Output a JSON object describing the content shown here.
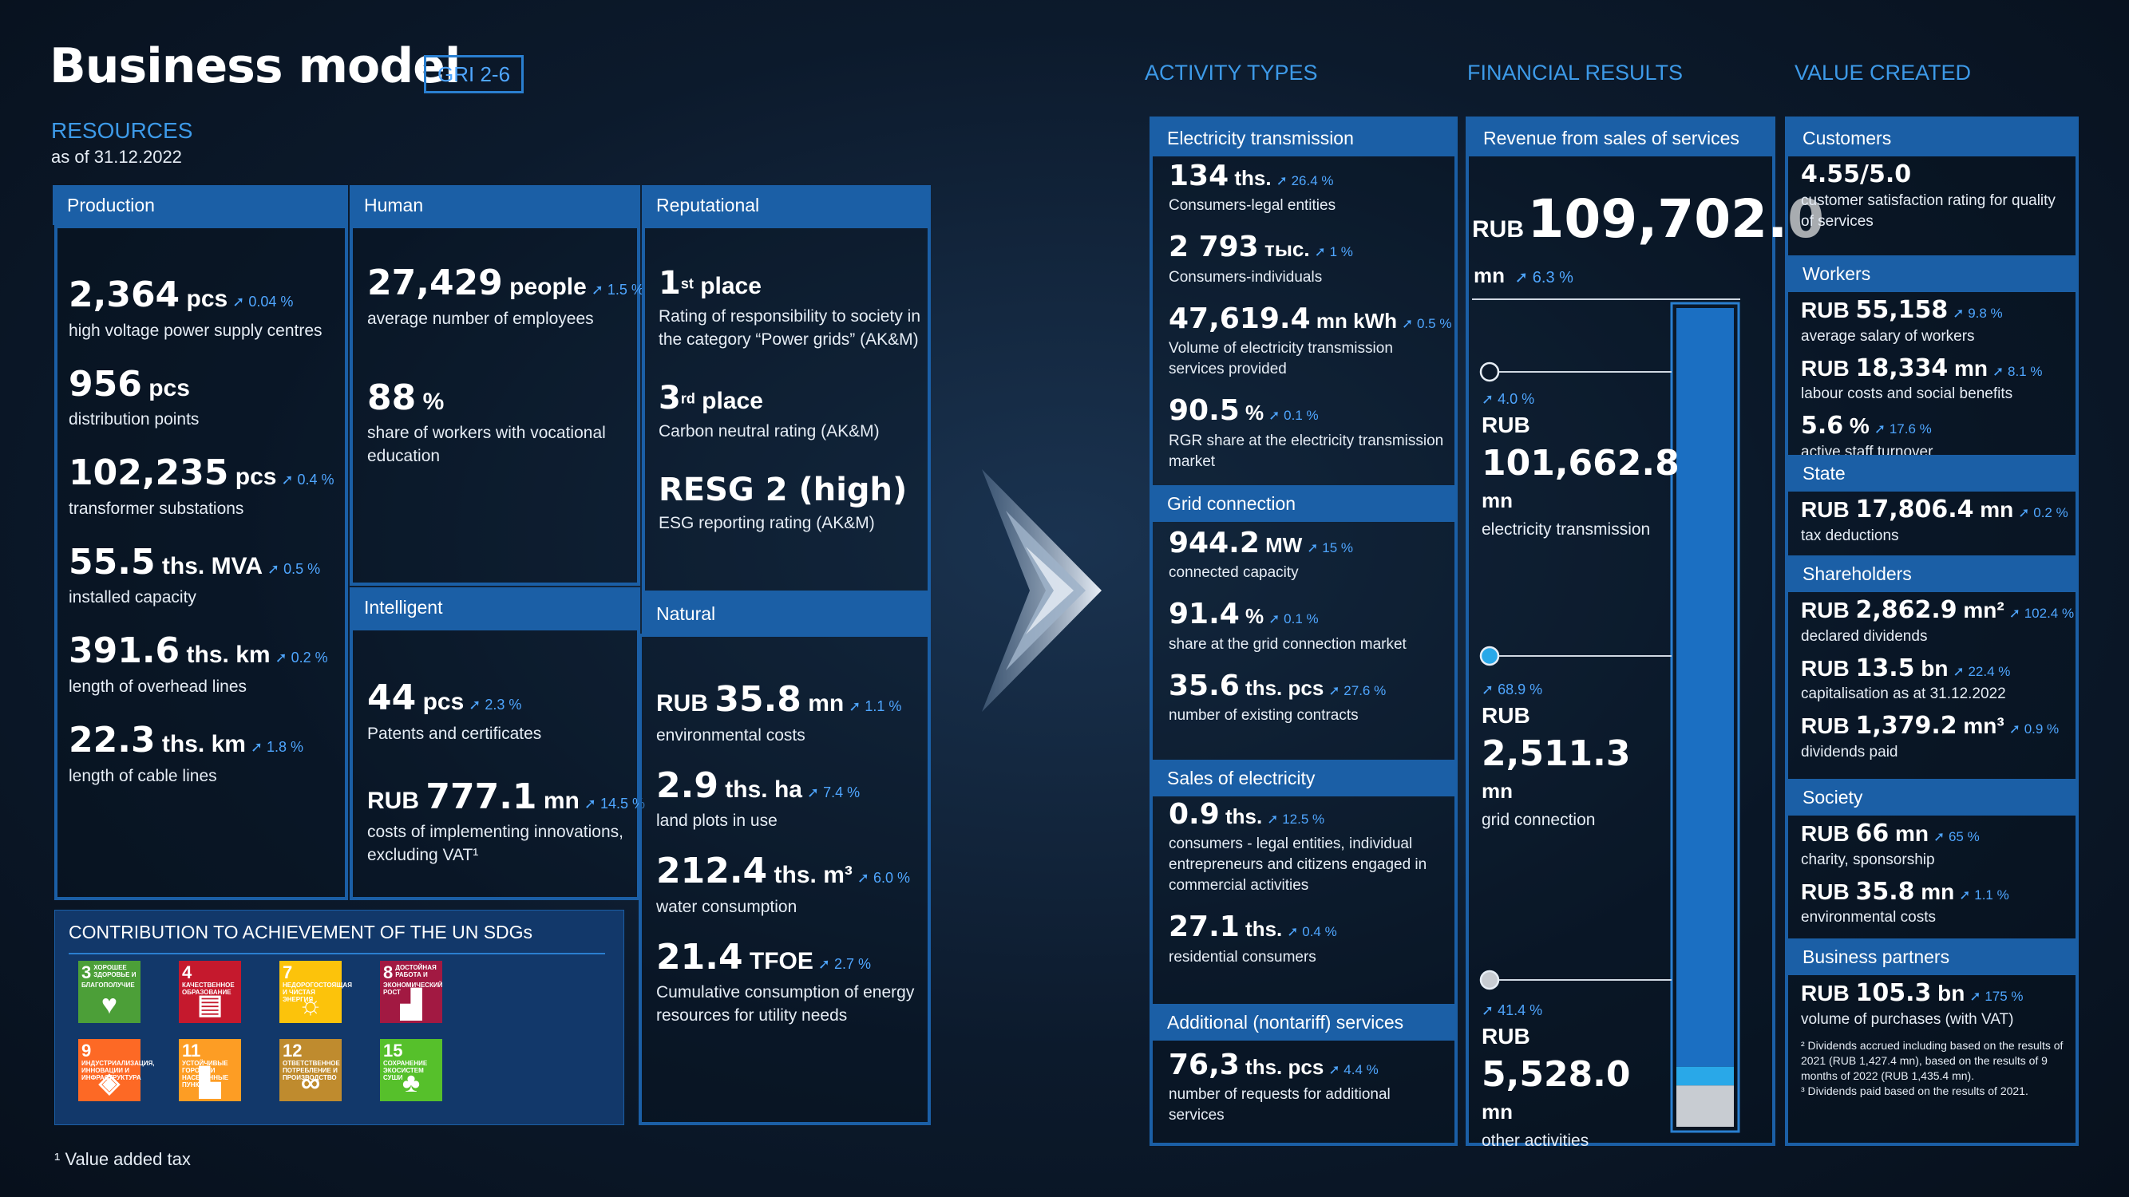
{
  "title": "Business model",
  "gri": "GRI 2-6",
  "resources_label": "RESOURCES",
  "as_of": "as of 31.12.2022",
  "production": {
    "header": "Production",
    "items": [
      {
        "value": "2,364",
        "unit": "pcs",
        "change": "0.04 %",
        "desc": "high voltage power supply centres"
      },
      {
        "value": "956",
        "unit": "pcs",
        "change": "",
        "desc": "distribution points"
      },
      {
        "value": "102,235",
        "unit": "pcs",
        "change": "0.4 %",
        "desc": "transformer substations"
      },
      {
        "value": "55.5",
        "unit": "ths. MVA",
        "change": "0.5 %",
        "desc": "installed capacity"
      },
      {
        "value": "391.6",
        "unit": "ths. km",
        "change": "0.2 %",
        "desc": "length of overhead lines"
      },
      {
        "value": "22.3",
        "unit": "ths. km",
        "change": "1.8 %",
        "desc": "length of cable lines"
      }
    ]
  },
  "human": {
    "header": "Human",
    "items": [
      {
        "value": "27,429",
        "unit": "people",
        "change": "1.5 %",
        "desc": "average number of employees"
      },
      {
        "value": "88",
        "unit": "%",
        "change": "",
        "desc": "share of workers with vocational education"
      }
    ]
  },
  "intelligent": {
    "header": "Intelligent",
    "items": [
      {
        "value": "44",
        "unit": "pcs",
        "change": "2.3 %",
        "desc": "Patents and certificates"
      },
      {
        "prefix": "RUB",
        "value": "777.1",
        "unit": "mn",
        "change": "14.5 %",
        "desc": "costs of implementing innovations, excluding VAT¹"
      }
    ]
  },
  "reputational": {
    "header": "Reputational",
    "items": [
      {
        "value": "1",
        "sup": "st",
        "unit": "place",
        "desc": "Rating of responsibility to society in the category “Power grids” (AK&M)"
      },
      {
        "value": "3",
        "sup": "rd",
        "unit": "place",
        "desc": "Carbon neutral rating (AK&M)"
      },
      {
        "value": "RESG 2 (high)",
        "desc": "ESG reporting rating (AK&M)"
      }
    ]
  },
  "natural": {
    "header": "Natural",
    "items": [
      {
        "prefix": "RUB",
        "value": "35.8",
        "unit": "mn",
        "change": "1.1 %",
        "desc": "environmental costs"
      },
      {
        "value": "2.9",
        "unit": "ths. ha",
        "change": "7.4 %",
        "desc": "land plots in use"
      },
      {
        "value": "212.4",
        "unit": "ths. m³",
        "change": "6.0 %",
        "desc": "water consumption"
      },
      {
        "value": "21.4",
        "unit": "TFOE",
        "change": "2.7 %",
        "desc": "Cumulative consumption of energy resources for utility needs"
      }
    ]
  },
  "sdg": {
    "title": "CONTRIBUTION TO ACHIEVEMENT OF THE UN SDGs",
    "goals": [
      {
        "num": "3",
        "label": "ХОРОШЕЕ ЗДОРОВЬЕ И БЛАГОПОЛУЧИЕ",
        "color": "#4c9f38",
        "icon": "♥"
      },
      {
        "num": "4",
        "label": "КАЧЕСТВЕННОЕ ОБРАЗОВАНИЕ",
        "color": "#c5192d",
        "icon": "▤"
      },
      {
        "num": "7",
        "label": "НЕДОРОГОСТОЯЩАЯ И ЧИСТАЯ ЭНЕРГИЯ",
        "color": "#fcc30b",
        "icon": "☼"
      },
      {
        "num": "8",
        "label": "ДОСТОЙНАЯ РАБОТА И ЭКОНОМИЧЕСКИЙ РОСТ",
        "color": "#a21942",
        "icon": "▟"
      },
      {
        "num": "9",
        "label": "ИНДУСТРИАЛИЗАЦИЯ, ИННОВАЦИИ И ИНФРАСТРУКТУРА",
        "color": "#fd6925",
        "icon": "◈"
      },
      {
        "num": "11",
        "label": "УСТОЙЧИВЫЕ ГОРОДА И НАСЕЛЕННЫЕ ПУНКТЫ",
        "color": "#fd9d24",
        "icon": "▙"
      },
      {
        "num": "12",
        "label": "ОТВЕТСТВЕННОЕ ПОТРЕБЛЕНИЕ И ПРОИЗВОДСТВО",
        "color": "#bf8b2e",
        "icon": "∞"
      },
      {
        "num": "15",
        "label": "СОХРАНЕНИЕ ЭКОСИСТЕМ СУШИ",
        "color": "#56c02b",
        "icon": "♣"
      }
    ]
  },
  "footnote": "¹ Value added tax",
  "activity_types_label": "ACTIVITY TYPES",
  "financial_results_label": "FINANCIAL RESULTS",
  "value_created_label": "VALUE CREATED",
  "activity": {
    "transmission": {
      "header": "Electricity transmission",
      "items": [
        {
          "value": "134",
          "unit": "ths.",
          "change": "26.4 %",
          "desc": "Consumers-legal entities"
        },
        {
          "value": "2 793",
          "unit": "тыс.",
          "change": "1 %",
          "desc": "Consumers-individuals"
        },
        {
          "value": "47,619.4",
          "unit": "mn kWh",
          "change": "0.5 %",
          "desc": "Volume of electricity transmission services provided"
        },
        {
          "value": "90.5",
          "unit": "%",
          "change": "0.1 %",
          "desc": "RGR share at the electricity transmission market"
        }
      ]
    },
    "grid": {
      "header": "Grid connection",
      "items": [
        {
          "value": "944.2",
          "unit": "MW",
          "change": "15 %",
          "desc": "connected capacity"
        },
        {
          "value": "91.4",
          "unit": "%",
          "change": "0.1 %",
          "desc": "share at the grid connection market"
        },
        {
          "value": "35.6",
          "unit": "ths. pcs",
          "change": "27.6 %",
          "desc": "number of existing contracts"
        }
      ]
    },
    "sales": {
      "header": "Sales of electricity",
      "items": [
        {
          "value": "0.9",
          "unit": "ths.",
          "change": "12.5 %",
          "desc": "consumers - legal entities, individual entrepreneurs and citizens engaged in commercial activities"
        },
        {
          "value": "27.1",
          "unit": "ths.",
          "change": "0.4 %",
          "desc": "residential consumers"
        }
      ]
    },
    "additional": {
      "header": "Additional (nontariff) services",
      "items": [
        {
          "value": "76,3",
          "unit": "ths. pcs",
          "change": "4.4 %",
          "desc": "number of requests for additional services"
        }
      ]
    }
  },
  "financial": {
    "header": "Revenue from sales of services",
    "total": {
      "prefix": "RUB",
      "value": "109,702.0",
      "unit": "mn",
      "change": "6.3 %"
    },
    "segments": [
      {
        "change": "4.0 %",
        "prefix": "RUB",
        "value": "101,662.8",
        "unit": "mn",
        "desc": "electricity transmission"
      },
      {
        "change": "68.9 %",
        "prefix": "RUB",
        "value": "2,511.3",
        "unit": "mn",
        "desc": "grid connection"
      },
      {
        "change": "41.4 %",
        "prefix": "RUB",
        "value": "5,528.0",
        "unit": "mn",
        "desc": "other activities"
      }
    ],
    "bar_shares": [
      0.9267,
      0.0229,
      0.0504
    ],
    "bar_colors": [
      "#1b6fc2",
      "#29a8e8",
      "#c8ccd2"
    ]
  },
  "value": {
    "customers": {
      "header": "Customers",
      "items": [
        {
          "value": "4.55/5.0",
          "desc": "customer satisfaction rating for quality of services"
        }
      ]
    },
    "workers": {
      "header": "Workers",
      "items": [
        {
          "prefix": "RUB",
          "value": "55,158",
          "change": "9.8 %",
          "desc": "average salary of workers"
        },
        {
          "prefix": "RUB",
          "value": "18,334",
          "unit": "mn",
          "change": "8.1 %",
          "desc": "labour costs and social benefits"
        },
        {
          "value": "5.6",
          "unit": "%",
          "change": "17.6 %",
          "desc": "active staff turnover"
        }
      ]
    },
    "state": {
      "header": "State",
      "items": [
        {
          "prefix": "RUB",
          "value": "17,806.4",
          "unit": "mn",
          "change": "0.2 %",
          "desc": "tax deductions"
        }
      ]
    },
    "shareholders": {
      "header": "Shareholders",
      "items": [
        {
          "prefix": "RUB",
          "value": "2,862.9",
          "unit": "mn²",
          "change": "102.4 %",
          "desc": "declared dividends"
        },
        {
          "prefix": "RUB",
          "value": "13.5",
          "unit": "bn",
          "change": "22.4 %",
          "desc": "capitalisation as at 31.12.2022"
        },
        {
          "prefix": "RUB",
          "value": "1,379.2",
          "unit": "mn³",
          "change": "0.9 %",
          "desc": "dividends paid"
        }
      ]
    },
    "society": {
      "header": "Society",
      "items": [
        {
          "prefix": "RUB",
          "value": "66",
          "unit": "mn",
          "change": "65 %",
          "desc": "charity, sponsorship"
        },
        {
          "prefix": "RUB",
          "value": "35.8",
          "unit": "mn",
          "change": "1.1 %",
          "desc": "environmental costs"
        }
      ]
    },
    "partners": {
      "header": "Business partners",
      "items": [
        {
          "prefix": "RUB",
          "value": "105.3",
          "unit": "bn",
          "change": "175 %",
          "desc": "volume of purchases (with VAT)"
        }
      ],
      "notes": [
        "² Dividends accrued including based on the results of 2021 (RUB 1,427.4 mn), based on the results of 9 months of 2022 (RUB 1,435.4 mn).",
        "³ Dividends paid based on the results of 2021."
      ]
    }
  }
}
